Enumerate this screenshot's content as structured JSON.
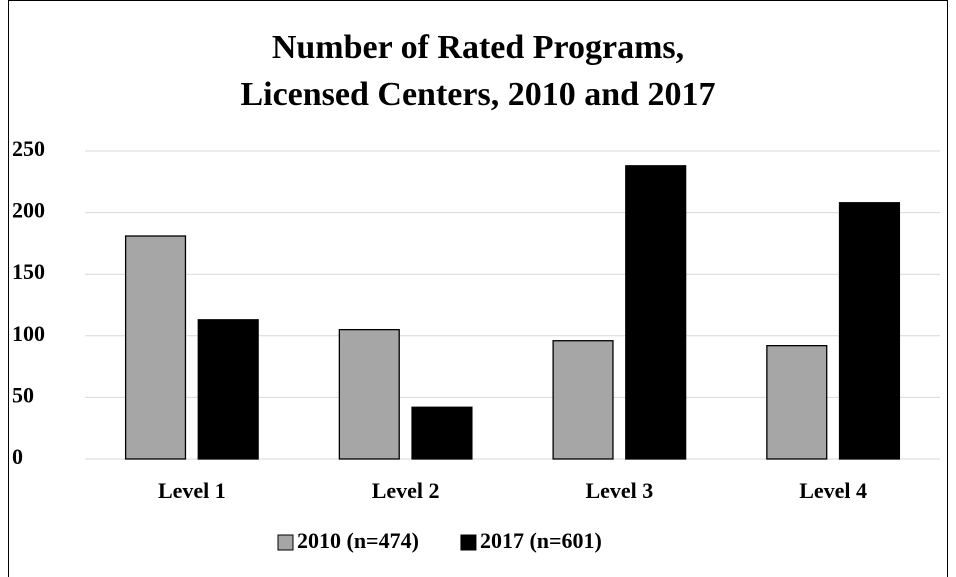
{
  "chart_data": {
    "type": "bar",
    "title": [
      "Number of Rated Programs,",
      "Licensed Centers, 2010 and 2017"
    ],
    "categories": [
      "Level 1",
      "Level 2",
      "Level 3",
      "Level 4"
    ],
    "series": [
      {
        "name": "2010 (n=474)",
        "color": "#a6a6a6",
        "values": [
          181,
          105,
          96,
          92
        ]
      },
      {
        "name": "2017 (n=601)",
        "color": "#000000",
        "values": [
          113,
          42,
          238,
          208
        ]
      }
    ],
    "ylim": [
      0,
      250
    ],
    "yticks": [
      0,
      50,
      100,
      150,
      200,
      250
    ],
    "grid": true,
    "legend": "bottom"
  }
}
